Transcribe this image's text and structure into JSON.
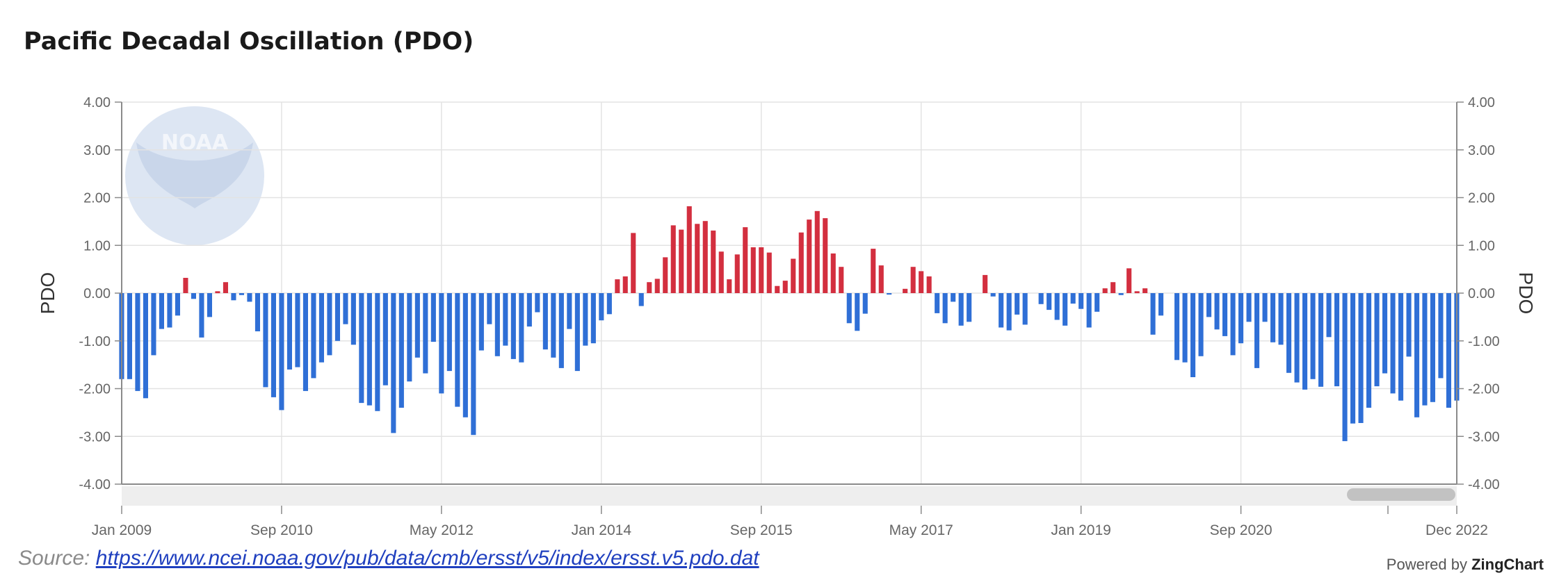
{
  "chart_title": "Pacific Decadal Oscillation (PDO)",
  "source": {
    "prefix": "Source:",
    "url_text": "https://www.ncei.noaa.gov/pub/data/cmb/ersst/v5/index/ersst.v5.pdo.dat"
  },
  "powered": {
    "prefix": "Powered by",
    "brand": "ZingChart"
  },
  "watermark": "NOAA",
  "colors": {
    "positive": "#d32f3f",
    "negative": "#2f6fd6",
    "grid": "#e3e3e3",
    "axis": "#8a8a8a",
    "scrollbar_track": "#eeeeee",
    "scrollbar_thumb": "#c2c2c2",
    "watermark": "#dde6f3"
  },
  "chart_data": {
    "type": "bar",
    "title": "Pacific Decadal Oscillation (PDO)",
    "ylabel": "PDO",
    "ylabel_right": "PDO",
    "ylim": [
      -4,
      4
    ],
    "yticks": [
      "4.00",
      "3.00",
      "2.00",
      "1.00",
      "0.00",
      "-1.00",
      "-2.00",
      "-3.00",
      "-4.00"
    ],
    "xticks": [
      "Jan 2009",
      "Sep 2010",
      "May 2012",
      "Jan 2014",
      "Sep 2015",
      "May 2017",
      "Jan 2019",
      "Sep 2020",
      "Dec 2022"
    ],
    "grid": true,
    "start": "Jan 2009",
    "end": "Dec 2022",
    "frequency": "monthly",
    "values": [
      -1.8,
      -1.8,
      -2.05,
      -2.2,
      -1.3,
      -0.75,
      -0.72,
      -0.47,
      0.32,
      -0.12,
      -0.93,
      -0.5,
      0.04,
      0.23,
      -0.15,
      -0.04,
      -0.18,
      -0.8,
      -1.97,
      -2.18,
      -2.45,
      -1.6,
      -1.55,
      -2.05,
      -1.78,
      -1.45,
      -1.3,
      -1.0,
      -0.65,
      -1.08,
      -2.3,
      -2.35,
      -2.47,
      -1.93,
      -2.93,
      -2.4,
      -1.85,
      -1.35,
      -1.68,
      -1.02,
      -2.1,
      -1.63,
      -2.38,
      -2.6,
      -2.97,
      -1.2,
      -0.65,
      -1.32,
      -1.1,
      -1.38,
      -1.45,
      -0.7,
      -0.4,
      -1.18,
      -1.35,
      -1.57,
      -0.75,
      -1.63,
      -1.1,
      -1.05,
      -0.57,
      -0.44,
      0.29,
      0.35,
      1.26,
      -0.27,
      0.23,
      0.3,
      0.75,
      1.42,
      1.33,
      1.82,
      1.45,
      1.51,
      1.31,
      0.87,
      0.29,
      0.81,
      1.38,
      0.96,
      0.96,
      0.85,
      0.15,
      0.26,
      0.72,
      1.27,
      1.54,
      1.72,
      1.57,
      0.83,
      0.55,
      -0.63,
      -0.79,
      -0.43,
      0.93,
      0.58,
      -0.03,
      0.0,
      0.09,
      0.55,
      0.46,
      0.35,
      -0.42,
      -0.63,
      -0.18,
      -0.68,
      -0.6,
      0.0,
      0.38,
      -0.07,
      -0.72,
      -0.78,
      -0.45,
      -0.66,
      0.0,
      -0.23,
      -0.35,
      -0.56,
      -0.68,
      -0.22,
      -0.33,
      -0.72,
      -0.39,
      0.1,
      0.23,
      -0.04,
      0.52,
      0.04,
      0.1,
      -0.87,
      -0.47,
      0.0,
      -1.4,
      -1.45,
      -1.76,
      -1.32,
      -0.5,
      -0.76,
      -0.9,
      -1.3,
      -1.05,
      -0.6,
      -1.57,
      -0.6,
      -1.03,
      -1.08,
      -1.67,
      -1.87,
      -2.02,
      -1.8,
      -1.96,
      -0.92,
      -1.95,
      -3.1,
      -2.73,
      -2.72,
      -2.4,
      -1.95,
      -1.68,
      -2.1,
      -2.25,
      -1.33,
      -2.6,
      -2.35,
      -2.28,
      -1.78,
      -2.4,
      -2.25
    ]
  }
}
